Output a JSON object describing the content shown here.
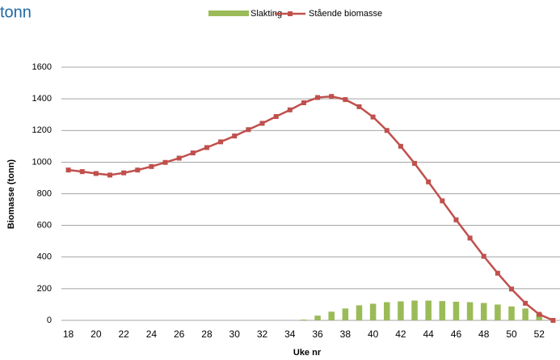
{
  "chart_data": {
    "type": "bar-line",
    "title": "tonn",
    "x_label": "Uke nr",
    "y_label": "Biomasse (tonn)",
    "categories": [
      18,
      null,
      20,
      null,
      22,
      null,
      24,
      null,
      26,
      null,
      28,
      null,
      30,
      null,
      32,
      null,
      34,
      null,
      36,
      null,
      38,
      null,
      40,
      null,
      42,
      null,
      44,
      null,
      46,
      null,
      48,
      null,
      50,
      null,
      52,
      null
    ],
    "series": [
      {
        "name": "Slakting",
        "type": "bar",
        "color": "#9bbb59",
        "values": [
          0,
          0,
          0,
          0,
          0,
          0,
          0,
          0,
          0,
          0,
          0,
          0,
          0,
          0,
          0,
          0,
          0,
          5,
          30,
          55,
          75,
          95,
          105,
          115,
          120,
          125,
          125,
          122,
          118,
          115,
          110,
          100,
          88,
          75,
          45,
          0
        ]
      },
      {
        "name": "Stående biomasse",
        "type": "line",
        "color": "#c0504d",
        "values": [
          950,
          940,
          928,
          918,
          932,
          950,
          972,
          998,
          1025,
          1058,
          1092,
          1128,
          1165,
          1205,
          1245,
          1288,
          1330,
          1375,
          1408,
          1415,
          1395,
          1350,
          1285,
          1200,
          1100,
          992,
          875,
          755,
          635,
          520,
          405,
          298,
          198,
          108,
          38,
          0
        ]
      }
    ],
    "ylim": [
      0,
      1600
    ],
    "yticks": [
      0,
      200,
      400,
      600,
      800,
      1000,
      1200,
      1400,
      1600
    ],
    "grid": true,
    "legend": "top"
  }
}
